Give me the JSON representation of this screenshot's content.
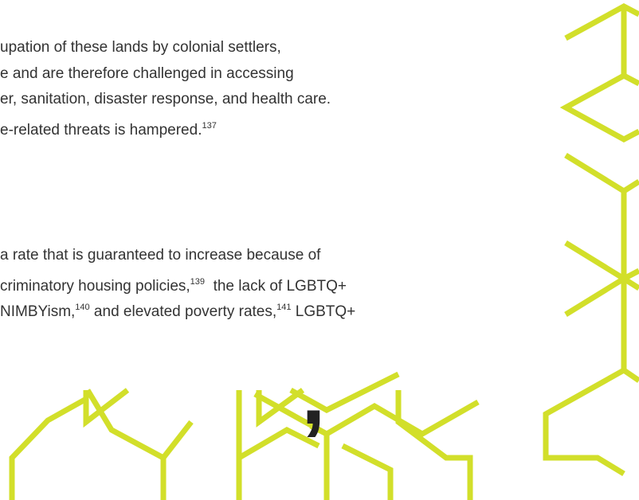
{
  "paragraphs": [
    {
      "lines": [
        [
          {
            "text": "upation of these lands by colonial settlers,"
          }
        ],
        [
          {
            "text": "e and are therefore challenged in accessing"
          }
        ],
        [
          {
            "text": "er, sanitation, disaster response, and health care."
          }
        ],
        [
          {
            "text": "e-related threats is hampered."
          },
          {
            "sup": "137"
          }
        ]
      ]
    },
    {
      "lines": [
        [
          {
            "text": "a rate that is guaranteed to increase because of"
          }
        ],
        [
          {
            "text": "criminatory housing policies,"
          },
          {
            "sup": "139"
          },
          {
            "text": "  the lack of LGBTQ+"
          }
        ],
        [
          {
            "text": "NIMBYism,"
          },
          {
            "sup": "140"
          },
          {
            "text": " and elevated poverty rates,"
          },
          {
            "sup": "141"
          },
          {
            "text": " LGBTQ+"
          }
        ]
      ]
    }
  ],
  "heading_fragment": ","
}
